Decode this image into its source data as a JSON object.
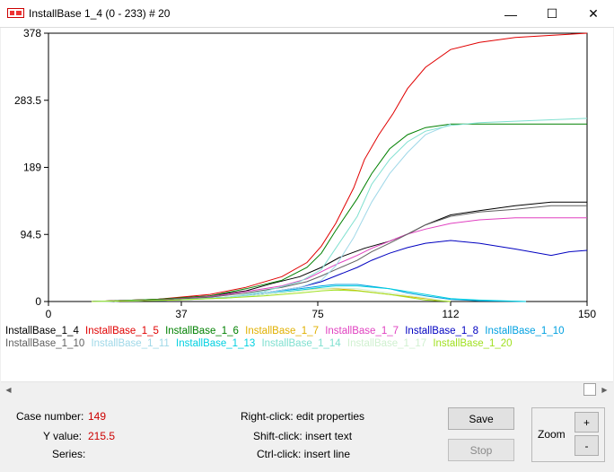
{
  "window": {
    "title": "InstallBase 1_4 (0 - 233) # 20",
    "minimize_glyph": "—",
    "maximize_glyph": "☐",
    "close_glyph": "✕"
  },
  "chart_data": {
    "type": "line",
    "title": "",
    "xlabel": "",
    "ylabel": "",
    "xlim": [
      0,
      150
    ],
    "ylim": [
      0,
      378
    ],
    "xticks": [
      0,
      37,
      75,
      112,
      150
    ],
    "yticks": [
      0,
      94.5,
      189,
      283.5,
      378
    ],
    "xtick_labels": [
      "0",
      "37",
      "75",
      "112",
      "150"
    ],
    "ytick_labels": [
      "0",
      "94.5",
      "189",
      "283.5",
      "378"
    ],
    "grid": false,
    "legend_position": "bottom",
    "series": [
      {
        "name": "InstallBase_1_4",
        "color": "#000000",
        "x": [
          12,
          30,
          45,
          55,
          62,
          70,
          76,
          81,
          88,
          95,
          100,
          105,
          112,
          120,
          130,
          140,
          150
        ],
        "y": [
          0,
          3,
          8,
          15,
          25,
          35,
          48,
          62,
          75,
          85,
          95,
          108,
          122,
          128,
          135,
          140,
          140
        ]
      },
      {
        "name": "InstallBase_1_5",
        "color": "#e00000",
        "x": [
          12,
          30,
          45,
          55,
          65,
          72,
          76,
          80,
          85,
          88,
          92,
          96,
          100,
          105,
          112,
          120,
          130,
          140,
          150
        ],
        "y": [
          0,
          3,
          10,
          20,
          35,
          55,
          78,
          110,
          160,
          200,
          235,
          265,
          300,
          330,
          355,
          365,
          372,
          375,
          378
        ]
      },
      {
        "name": "InstallBase_1_6",
        "color": "#008000",
        "x": [
          12,
          30,
          45,
          55,
          65,
          72,
          76,
          80,
          86,
          90,
          95,
          100,
          105,
          112,
          120,
          130,
          140,
          150
        ],
        "y": [
          0,
          3,
          8,
          18,
          30,
          48,
          68,
          100,
          145,
          180,
          215,
          235,
          245,
          250,
          250,
          250,
          250,
          250
        ]
      },
      {
        "name": "InstallBase_1_7",
        "color": "#e0b000",
        "x": [
          12,
          35,
          50,
          60,
          70,
          75,
          80,
          85,
          95,
          105,
          112
        ],
        "y": [
          0,
          2,
          5,
          10,
          15,
          18,
          18,
          16,
          10,
          4,
          0
        ]
      },
      {
        "name": "InstallBase_1_7",
        "color": "#e040c0",
        "x": [
          12,
          30,
          45,
          55,
          65,
          72,
          76,
          80,
          86,
          90,
          95,
          100,
          105,
          112,
          120,
          130,
          140,
          150
        ],
        "y": [
          0,
          2,
          7,
          14,
          22,
          32,
          42,
          52,
          65,
          75,
          85,
          95,
          102,
          110,
          115,
          118,
          118,
          118
        ]
      },
      {
        "name": "InstallBase_1_8",
        "color": "#0000c0",
        "x": [
          12,
          35,
          50,
          60,
          70,
          76,
          80,
          86,
          90,
          95,
          100,
          105,
          112,
          120,
          130,
          140,
          145,
          150
        ],
        "y": [
          0,
          2,
          6,
          12,
          20,
          28,
          36,
          48,
          58,
          68,
          76,
          82,
          86,
          82,
          74,
          65,
          70,
          72
        ]
      },
      {
        "name": "InstallBase_1_10",
        "color": "#00a0e0",
        "x": [
          12,
          35,
          50,
          60,
          70,
          76,
          80,
          86,
          95,
          100,
          105,
          112,
          120,
          133
        ],
        "y": [
          0,
          2,
          6,
          12,
          18,
          22,
          24,
          24,
          18,
          12,
          8,
          3,
          1,
          0
        ]
      },
      {
        "name": "InstallBase_1_10",
        "color": "#606060",
        "x": [
          12,
          30,
          45,
          55,
          65,
          72,
          76,
          80,
          86,
          90,
          95,
          100,
          105,
          112,
          120,
          130,
          140,
          150
        ],
        "y": [
          0,
          2,
          6,
          12,
          20,
          28,
          36,
          45,
          58,
          70,
          82,
          95,
          108,
          120,
          126,
          130,
          135,
          135
        ]
      },
      {
        "name": "InstallBase_1_11",
        "color": "#a0d8e8",
        "x": [
          12,
          35,
          50,
          60,
          70,
          76,
          80,
          85,
          90,
          95,
          100,
          105,
          112
        ],
        "y": [
          0,
          2,
          6,
          12,
          20,
          30,
          50,
          90,
          140,
          180,
          210,
          235,
          250
        ]
      },
      {
        "name": "InstallBase_1_13",
        "color": "#00d0e0",
        "x": [
          12,
          35,
          50,
          60,
          70,
          76,
          80,
          86,
          95,
          105,
          112,
          120,
          133
        ],
        "y": [
          0,
          2,
          5,
          10,
          16,
          20,
          22,
          22,
          18,
          10,
          4,
          2,
          0
        ]
      },
      {
        "name": "InstallBase_1_14",
        "color": "#80e0d0",
        "x": [
          12,
          35,
          50,
          60,
          70,
          76,
          80,
          86,
          90,
          95,
          100,
          105,
          112,
          120,
          130,
          140,
          150
        ],
        "y": [
          0,
          2,
          6,
          14,
          28,
          45,
          75,
          120,
          165,
          200,
          225,
          240,
          248,
          252,
          254,
          256,
          258
        ]
      },
      {
        "name": "InstallBase_1_17",
        "color": "#d0f0d0",
        "x": [
          12,
          35,
          50,
          60,
          70,
          76,
          80,
          86,
          95,
          105,
          112
        ],
        "y": [
          0,
          2,
          5,
          10,
          15,
          18,
          19,
          18,
          12,
          5,
          0
        ]
      },
      {
        "name": "InstallBase_1_20",
        "color": "#a0e020",
        "x": [
          12,
          35,
          50,
          60,
          70,
          76,
          80,
          86,
          95,
          100,
          105,
          112
        ],
        "y": [
          0,
          2,
          5,
          8,
          12,
          15,
          16,
          15,
          10,
          6,
          2,
          0
        ]
      }
    ]
  },
  "legend": [
    {
      "label": "InstallBase_1_4",
      "color": "#000000"
    },
    {
      "label": "InstallBase_1_5",
      "color": "#e00000"
    },
    {
      "label": "InstallBase_1_6",
      "color": "#008000"
    },
    {
      "label": "InstallBase_1_7",
      "color": "#e0b000"
    },
    {
      "label": "InstallBase_1_7",
      "color": "#e040c0"
    },
    {
      "label": "InstallBase_1_8",
      "color": "#0000c0"
    },
    {
      "label": "InstallBase_1_10",
      "color": "#00a0e0"
    },
    {
      "label": "InstallBase_1_10",
      "color": "#606060"
    },
    {
      "label": "InstallBase_1_11",
      "color": "#a0d8e8"
    },
    {
      "label": "InstallBase_1_13",
      "color": "#00d0e0"
    },
    {
      "label": "InstallBase_1_14",
      "color": "#80e0d0"
    },
    {
      "label": "InstallBase_1_17",
      "color": "#d0f0d0"
    },
    {
      "label": "InstallBase_1_20",
      "color": "#a0e020"
    }
  ],
  "scroll": {
    "left_glyph": "◀",
    "right_glyph": "▶"
  },
  "status": {
    "case_label": "Case number:",
    "case_value": "149",
    "y_label": "Y value:",
    "y_value": "215.5",
    "series_label": "Series:",
    "series_value": ""
  },
  "hints": {
    "right_click": "Right-click: edit properties",
    "shift_click": "Shift-click: insert text",
    "ctrl_click": "Ctrl-click: insert line"
  },
  "buttons": {
    "save": "Save",
    "stop": "Stop"
  },
  "zoom": {
    "label": "Zoom",
    "plus": "+",
    "minus": "-"
  }
}
